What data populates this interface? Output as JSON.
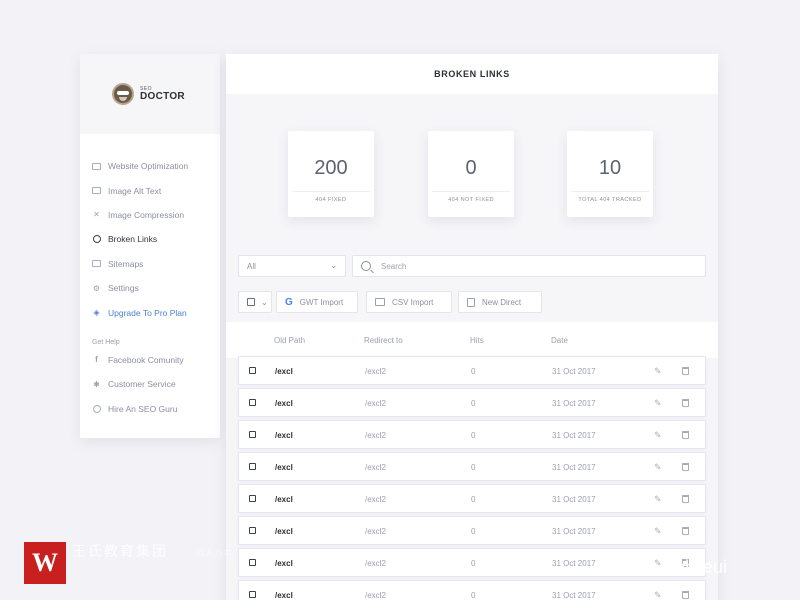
{
  "brand": {
    "small": "SEO",
    "big": "DOCTOR"
  },
  "sidebar": {
    "items": [
      {
        "label": "Website Optimization",
        "icon": "monitor-icon"
      },
      {
        "label": "Image Alt Text",
        "icon": "image-icon"
      },
      {
        "label": "Image Compression",
        "icon": "compress-icon"
      },
      {
        "label": "Broken Links",
        "icon": "clock-icon",
        "active": true
      },
      {
        "label": "Sitemaps",
        "icon": "sitemap-icon"
      },
      {
        "label": "Settings",
        "icon": "gear-icon"
      },
      {
        "label": "Upgrade To Pro Plan",
        "icon": "tag-icon"
      }
    ],
    "help_heading": "Get Help",
    "help_items": [
      {
        "label": "Facebook Comunity",
        "icon": "facebook-icon"
      },
      {
        "label": "Customer Service",
        "icon": "gear-icon"
      },
      {
        "label": "Hire An SEO Guru",
        "icon": "guru-icon"
      }
    ]
  },
  "main": {
    "title": "BROKEN LINKS",
    "stats": [
      {
        "value": "200",
        "label": "404 FIXED"
      },
      {
        "value": "0",
        "label": "404 NOT FIXED"
      },
      {
        "value": "10",
        "label": "TOTAL 404 TRACKED"
      }
    ],
    "filter": {
      "selected": "All"
    },
    "search": {
      "placeholder": "Search"
    },
    "toolbar": {
      "gwt_import": "GWT Import",
      "csv_import": "CSV Import",
      "new_direct": "New Direct"
    },
    "columns": {
      "old_path": "Old Path",
      "redirect_to": "Redirect to",
      "hits": "Hits",
      "date": "Date"
    },
    "rows": [
      {
        "old_path": "/excl",
        "redirect_to": "/excl2",
        "hits": "0",
        "date": "31 Oct 2017"
      },
      {
        "old_path": "/excl",
        "redirect_to": "/excl2",
        "hits": "0",
        "date": "31 Oct 2017"
      },
      {
        "old_path": "/excl",
        "redirect_to": "/excl2",
        "hits": "0",
        "date": "31 Oct 2017"
      },
      {
        "old_path": "/excl",
        "redirect_to": "/excl2",
        "hits": "0",
        "date": "31 Oct 2017"
      },
      {
        "old_path": "/excl",
        "redirect_to": "/excl2",
        "hits": "0",
        "date": "31 Oct 2017"
      },
      {
        "old_path": "/excl",
        "redirect_to": "/excl2",
        "hits": "0",
        "date": "31 Oct 2017"
      },
      {
        "old_path": "/excl",
        "redirect_to": "/excl2",
        "hits": "0",
        "date": "31 Oct 2017"
      },
      {
        "old_path": "/excl",
        "redirect_to": "/excl2",
        "hits": "0",
        "date": "31 Oct 2017"
      }
    ]
  },
  "watermark": {
    "title": "王氏教育集团",
    "sub": "以人为本",
    "right": "微信号: mobileui"
  }
}
